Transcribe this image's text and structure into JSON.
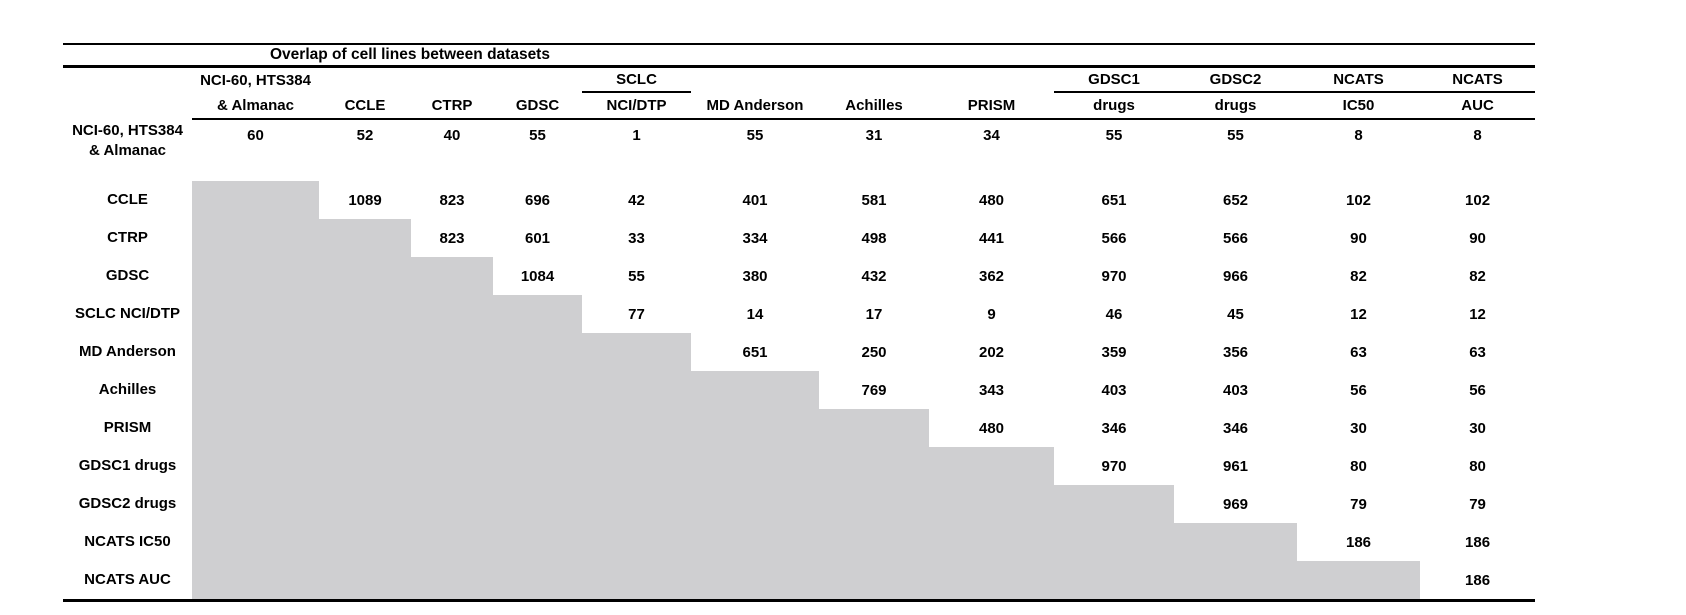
{
  "title": "Overlap of cell lines between datasets",
  "colors": {
    "shaded_cell": "#cfcfd1",
    "text": "#000000",
    "rule": "#000000",
    "background": "#ffffff"
  },
  "table": {
    "columns": [
      {
        "header_top": "NCI-60, HTS384",
        "header_bottom": "& Almanac",
        "align": "left",
        "group_rule": false
      },
      {
        "header_top": "",
        "header_bottom": "CCLE",
        "align": "center",
        "group_rule": false
      },
      {
        "header_top": "",
        "header_bottom": "CTRP",
        "align": "center",
        "group_rule": false
      },
      {
        "header_top": "",
        "header_bottom": "GDSC",
        "align": "center",
        "group_rule": false
      },
      {
        "header_top": "SCLC",
        "header_bottom": "NCI/DTP",
        "align": "center",
        "group_rule": true
      },
      {
        "header_top": "",
        "header_bottom": "MD Anderson",
        "align": "center",
        "group_rule": false
      },
      {
        "header_top": "",
        "header_bottom": "Achilles",
        "align": "center",
        "group_rule": false
      },
      {
        "header_top": "",
        "header_bottom": "PRISM",
        "align": "center",
        "group_rule": false
      },
      {
        "header_top": "GDSC1",
        "header_bottom": "drugs",
        "align": "center",
        "group_rule": true
      },
      {
        "header_top": "GDSC2",
        "header_bottom": "drugs",
        "align": "center",
        "group_rule": true
      },
      {
        "header_top": "NCATS",
        "header_bottom": "IC50",
        "align": "center",
        "group_rule": true
      },
      {
        "header_top": "NCATS",
        "header_bottom": "AUC",
        "align": "center",
        "group_rule": true
      }
    ],
    "rows": [
      {
        "label_lines": [
          "NCI-60, HTS384",
          "& Almanac"
        ],
        "values": [
          60,
          52,
          40,
          55,
          1,
          55,
          31,
          34,
          55,
          55,
          8,
          8
        ]
      },
      {
        "label_lines": [
          "CCLE"
        ],
        "values": [
          null,
          1089,
          823,
          696,
          42,
          401,
          581,
          480,
          651,
          652,
          102,
          102
        ]
      },
      {
        "label_lines": [
          "CTRP"
        ],
        "values": [
          null,
          null,
          823,
          601,
          33,
          334,
          498,
          441,
          566,
          566,
          90,
          90
        ]
      },
      {
        "label_lines": [
          "GDSC"
        ],
        "values": [
          null,
          null,
          null,
          1084,
          55,
          380,
          432,
          362,
          970,
          966,
          82,
          82
        ]
      },
      {
        "label_lines": [
          "SCLC NCI/DTP"
        ],
        "values": [
          null,
          null,
          null,
          null,
          77,
          14,
          17,
          9,
          46,
          45,
          12,
          12
        ]
      },
      {
        "label_lines": [
          "MD Anderson"
        ],
        "values": [
          null,
          null,
          null,
          null,
          null,
          651,
          250,
          202,
          359,
          356,
          63,
          63
        ]
      },
      {
        "label_lines": [
          "Achilles"
        ],
        "values": [
          null,
          null,
          null,
          null,
          null,
          null,
          769,
          343,
          403,
          403,
          56,
          56
        ]
      },
      {
        "label_lines": [
          "PRISM"
        ],
        "values": [
          null,
          null,
          null,
          null,
          null,
          null,
          null,
          480,
          346,
          346,
          30,
          30
        ]
      },
      {
        "label_lines": [
          "GDSC1 drugs"
        ],
        "values": [
          null,
          null,
          null,
          null,
          null,
          null,
          null,
          null,
          970,
          961,
          80,
          80
        ]
      },
      {
        "label_lines": [
          "GDSC2 drugs"
        ],
        "values": [
          null,
          null,
          null,
          null,
          null,
          null,
          null,
          null,
          null,
          969,
          79,
          79
        ]
      },
      {
        "label_lines": [
          "NCATS IC50"
        ],
        "values": [
          null,
          null,
          null,
          null,
          null,
          null,
          null,
          null,
          null,
          null,
          186,
          186
        ]
      },
      {
        "label_lines": [
          "NCATS AUC"
        ],
        "values": [
          null,
          null,
          null,
          null,
          null,
          null,
          null,
          null,
          null,
          null,
          null,
          186
        ]
      }
    ]
  }
}
